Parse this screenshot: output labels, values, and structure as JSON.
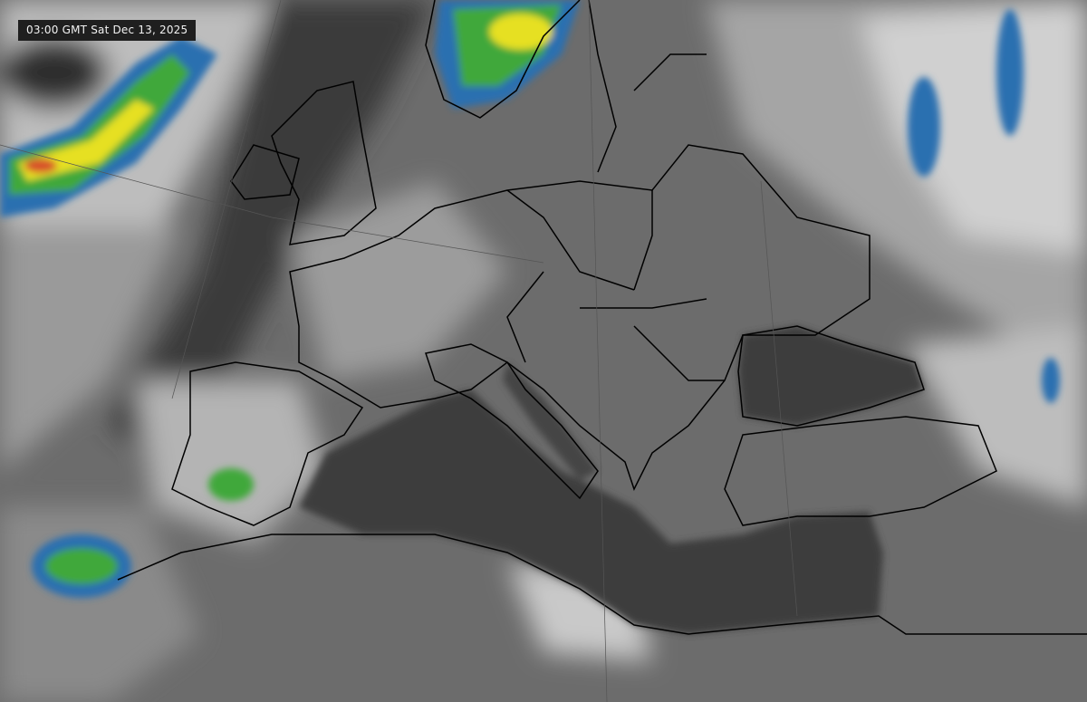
{
  "timestamp": "03:00 GMT Sat Dec 13, 2025",
  "colors": {
    "cloud_white": "#e6e6e6",
    "land_gray": "#6a6a6a",
    "sea_dark": "#3c3c3c",
    "cold_cloud_cyan": "#9fe3e8",
    "cold_cloud_blue": "#2a6fb0",
    "cold_cloud_green": "#3fa83a",
    "cold_cloud_yellow": "#e6e020",
    "cold_cloud_red": "#d8502a",
    "border": "#000000"
  }
}
